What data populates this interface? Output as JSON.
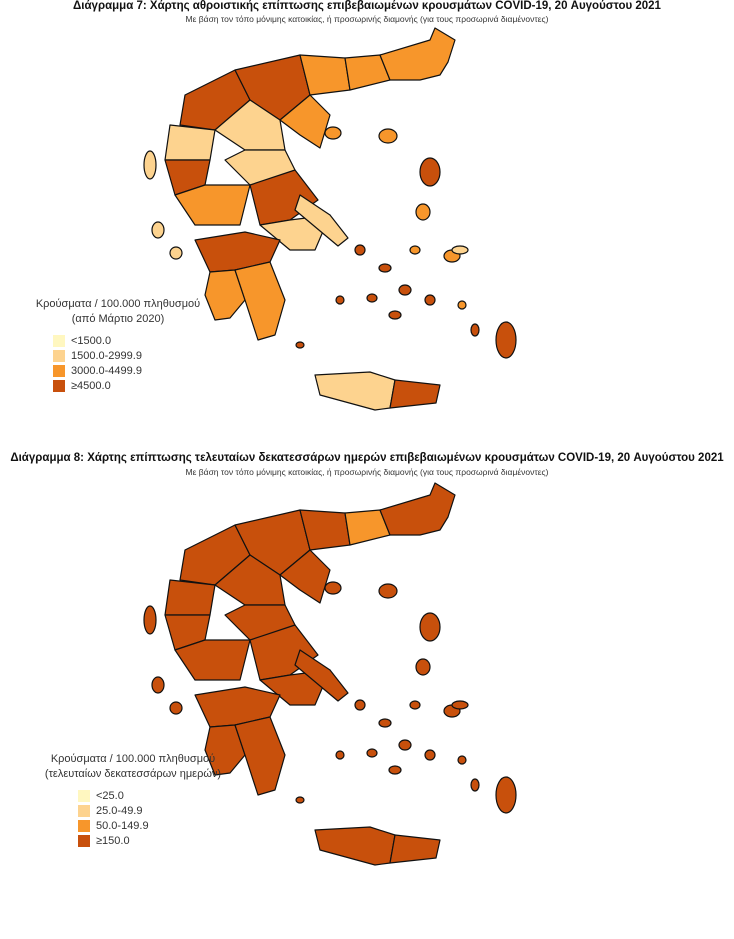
{
  "chart_data": [
    {
      "type": "choropleth",
      "title": "Διάγραμμα 7: Χάρτης αθροιστικής επίπτωσης επιβεβαιωμένων κρουσμάτων COVID-19, 20 Αυγούστου 2021",
      "subtitle": "Με βάση τον τόπο μόνιμης κατοικίας, ή προσωρινής διαμονής (για τους προσωρινά διαμένοντες)",
      "legend": {
        "title_line1": "Κρούσματα / 100.000 πληθυσμού",
        "title_line2": "(από Μάρτιο 2020)",
        "classes": [
          {
            "label": "<1500.0",
            "color": "#fff7c0"
          },
          {
            "label": "1500.0-2999.9",
            "color": "#fdd38f"
          },
          {
            "label": "3000.0-4499.9",
            "color": "#f7962b"
          },
          {
            "label": "≥4500.0",
            "color": "#c8500c"
          }
        ],
        "placement": "bottom-left"
      },
      "region_classes": [
        3,
        3,
        2,
        2,
        2,
        1,
        3,
        1,
        1,
        2,
        3,
        1,
        1,
        3,
        2,
        2,
        2,
        1,
        3
      ]
    },
    {
      "type": "choropleth",
      "title": "Διάγραμμα 8: Χάρτης επίπτωσης τελευταίων δεκατεσσάρων ημερών επιβεβαιωμένων κρουσμάτων COVID-19, 20 Αυγούστου 2021",
      "subtitle": "Με βάση τον τόπο μόνιμης κατοικίας, ή προσωρινής διαμονής (για τους προσωρινά διαμένοντες)",
      "legend": {
        "title_line1": "Κρούσματα / 100.000 πληθυσμού",
        "title_line2": "(τελευταίων δεκατεσσάρων ημερών)",
        "classes": [
          {
            "label": "<25.0",
            "color": "#fff7c0"
          },
          {
            "label": "25.0-49.9",
            "color": "#fdd38f"
          },
          {
            "label": "50.0-149.9",
            "color": "#f7962b"
          },
          {
            "label": "≥150.0",
            "color": "#c8500c"
          }
        ],
        "placement": "bottom-left"
      },
      "region_classes": [
        3,
        3,
        3,
        2,
        3,
        3,
        3,
        3,
        3,
        3,
        3,
        3,
        3,
        3,
        3,
        3,
        3,
        3,
        3
      ]
    }
  ]
}
